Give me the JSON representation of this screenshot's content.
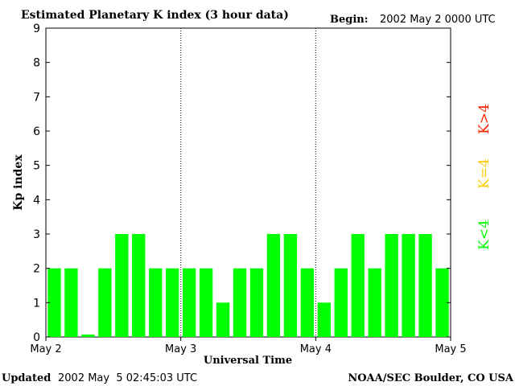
{
  "header": {
    "title": "Estimated Planetary K index (3 hour data)",
    "begin_label": "Begin:",
    "begin_value": "2002 May 2 0000 UTC"
  },
  "footer": {
    "updated_label": "Updated",
    "updated_value": "2002 May  5 02:45:03 UTC",
    "source": "NOAA/SEC Boulder, CO USA"
  },
  "legend": {
    "less": "K<4",
    "equal": "K=4",
    "greater": "K>4"
  },
  "colors": {
    "less": "#00ff00",
    "equal": "#ffcc00",
    "greater": "#ff0000"
  },
  "chart_data": {
    "type": "bar",
    "xlabel": "Universal Time",
    "ylabel": "Kp index",
    "ylim": [
      0,
      9
    ],
    "yticks": [
      0,
      1,
      2,
      3,
      4,
      5,
      6,
      7,
      8,
      9
    ],
    "xticks": [
      "May 2",
      "May 3",
      "May 4",
      "May 5"
    ],
    "grid": "vertical dotted lines at day boundaries",
    "values": [
      2,
      2,
      0.07,
      2,
      3,
      3,
      2,
      2,
      2,
      2,
      1,
      2,
      2,
      3,
      3,
      2,
      1,
      2,
      3,
      2,
      3,
      3,
      3,
      2
    ]
  }
}
